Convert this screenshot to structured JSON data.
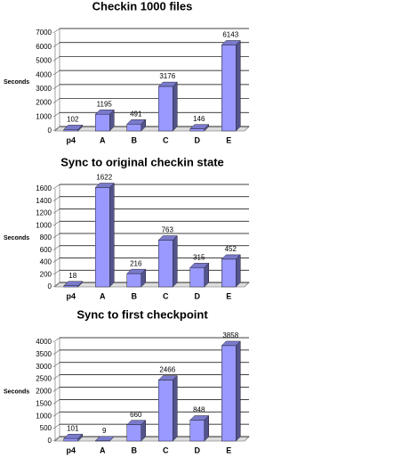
{
  "chart_data": [
    {
      "type": "bar",
      "title": "Checkin 1000 files",
      "y_label": "Seconds",
      "categories": [
        "p4",
        "A",
        "B",
        "C",
        "D",
        "E"
      ],
      "values": [
        102,
        1195,
        491,
        3176,
        146,
        6143
      ],
      "color": "#9999ff",
      "ylim": [
        0,
        7000
      ],
      "yticks": [
        0,
        1000,
        2000,
        3000,
        4000,
        5000,
        6000,
        7000
      ],
      "grid": true
    },
    {
      "type": "bar",
      "title": "Sync to original checkin state",
      "y_label": "Seconds",
      "categories": [
        "p4",
        "A",
        "B",
        "C",
        "D",
        "E"
      ],
      "values": [
        18,
        1622,
        216,
        763,
        315,
        452
      ],
      "color": "#9999ff",
      "ylim": [
        0,
        1600
      ],
      "yticks": [
        0,
        200,
        400,
        600,
        800,
        1000,
        1200,
        1400,
        1600
      ],
      "grid": true
    },
    {
      "type": "bar",
      "title": "Sync to first checkpoint",
      "y_label": "Seconds",
      "categories": [
        "p4",
        "A",
        "B",
        "C",
        "D",
        "E"
      ],
      "values": [
        101,
        9,
        660,
        2466,
        848,
        3858
      ],
      "color": "#9999ff",
      "ylim": [
        0,
        4000
      ],
      "yticks": [
        0,
        500,
        1000,
        1500,
        2000,
        2500,
        3000,
        3500,
        4000
      ],
      "grid": true
    }
  ]
}
